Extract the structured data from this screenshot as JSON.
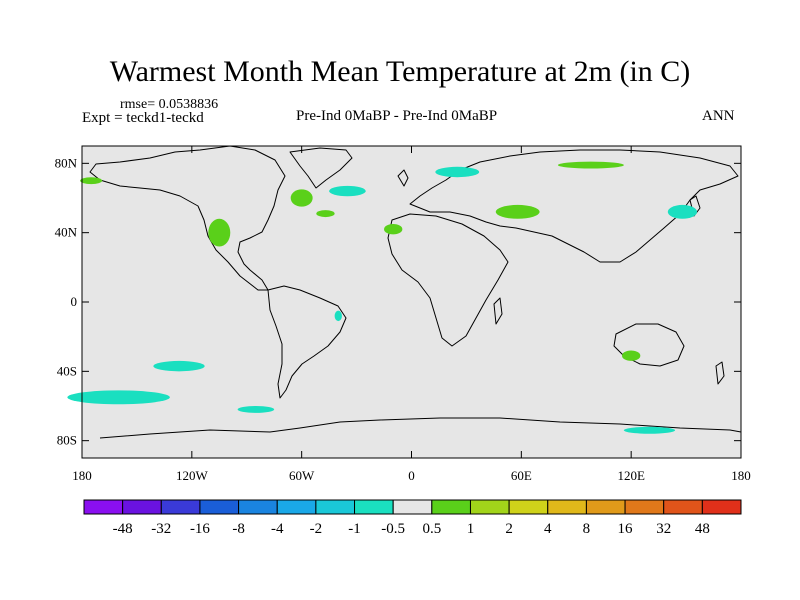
{
  "title": "Warmest Month Mean Temperature at 2m (in C)",
  "rmse_label": "rmse= 0.0538836",
  "expt_label": "Expt = teckd1-teckd",
  "subtitle": "Pre-Ind 0MaBP - Pre-Ind 0MaBP",
  "season": "ANN",
  "lat_ticks": [
    {
      "value": 80,
      "label": "80N"
    },
    {
      "value": 40,
      "label": "40N"
    },
    {
      "value": 0,
      "label": "0"
    },
    {
      "value": -40,
      "label": "40S"
    },
    {
      "value": -80,
      "label": "80S"
    }
  ],
  "lon_ticks": [
    {
      "value": -180,
      "label": "180"
    },
    {
      "value": -120,
      "label": "120W"
    },
    {
      "value": -60,
      "label": "60W"
    },
    {
      "value": 0,
      "label": "0"
    },
    {
      "value": 60,
      "label": "60E"
    },
    {
      "value": 120,
      "label": "120E"
    },
    {
      "value": 180,
      "label": "180"
    }
  ],
  "colorbar": {
    "colors": [
      "#8a0ff0",
      "#6a12e0",
      "#3a3ad8",
      "#1a5ed8",
      "#1a84e0",
      "#1aa8e8",
      "#1ac8d8",
      "#1adfc0",
      "#e6e6e6",
      "#5ad01a",
      "#a2d41a",
      "#cfd21a",
      "#e0b81a",
      "#e09a1a",
      "#e0781a",
      "#e0541a",
      "#e0301a"
    ],
    "labels": [
      "-48",
      "-32",
      "-16",
      "-8",
      "-4",
      "-2",
      "-1",
      "-0.5",
      "0.5",
      "1",
      "2",
      "4",
      "8",
      "16",
      "32",
      "48"
    ]
  },
  "anomalies": [
    {
      "lon": -175,
      "lat": 70,
      "rx": 6,
      "ry": 2,
      "color": "#5ad01a"
    },
    {
      "lon": -105,
      "lat": 40,
      "rx": 6,
      "ry": 8,
      "color": "#5ad01a"
    },
    {
      "lon": -60,
      "lat": 60,
      "rx": 6,
      "ry": 5,
      "color": "#5ad01a"
    },
    {
      "lon": -47,
      "lat": 51,
      "rx": 5,
      "ry": 2,
      "color": "#5ad01a"
    },
    {
      "lon": -10,
      "lat": 42,
      "rx": 5,
      "ry": 3,
      "color": "#5ad01a"
    },
    {
      "lon": 58,
      "lat": 52,
      "rx": 12,
      "ry": 4,
      "color": "#5ad01a"
    },
    {
      "lon": 98,
      "lat": 79,
      "rx": 18,
      "ry": 2,
      "color": "#5ad01a"
    },
    {
      "lon": 120,
      "lat": -31,
      "rx": 5,
      "ry": 3,
      "color": "#5ad01a"
    },
    {
      "lon": -127,
      "lat": -37,
      "rx": 14,
      "ry": 3,
      "color": "#1adfc0"
    },
    {
      "lon": -160,
      "lat": -55,
      "rx": 28,
      "ry": 4,
      "color": "#1adfc0"
    },
    {
      "lon": -85,
      "lat": -62,
      "rx": 10,
      "ry": 2,
      "color": "#1adfc0"
    },
    {
      "lon": 130,
      "lat": -74,
      "rx": 14,
      "ry": 2,
      "color": "#1adfc0"
    },
    {
      "lon": 25,
      "lat": 75,
      "rx": 12,
      "ry": 3,
      "color": "#1adfc0"
    },
    {
      "lon": -35,
      "lat": 64,
      "rx": 10,
      "ry": 3,
      "color": "#1adfc0"
    },
    {
      "lon": 148,
      "lat": 52,
      "rx": 8,
      "ry": 4,
      "color": "#1adfc0"
    },
    {
      "lon": -40,
      "lat": -8,
      "rx": 2,
      "ry": 3,
      "color": "#1adfc0"
    }
  ]
}
